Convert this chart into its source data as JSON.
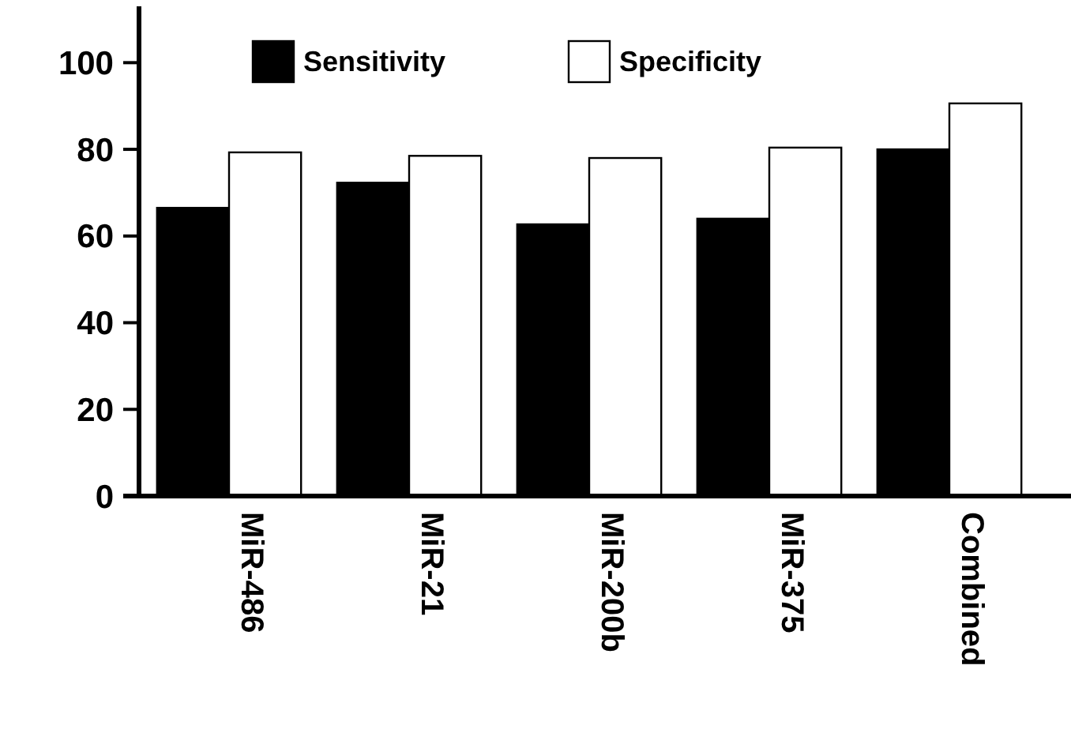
{
  "chart_data": {
    "type": "bar",
    "categories": [
      "MiR-486",
      "MiR-21",
      "MiR-200b",
      "MiR-375",
      "Combined"
    ],
    "series": [
      {
        "name": "Sensitivity",
        "color": "#000000",
        "values": [
          66.5,
          72.3,
          62.7,
          64.0,
          80.0
        ]
      },
      {
        "name": "Specificity",
        "color": "#ffffff",
        "values": [
          79.3,
          78.5,
          78.0,
          80.4,
          90.6
        ]
      }
    ],
    "ylim": [
      0,
      113
    ],
    "yticks": [
      0,
      20,
      40,
      60,
      80,
      100
    ],
    "grid": false,
    "legend": "top"
  }
}
